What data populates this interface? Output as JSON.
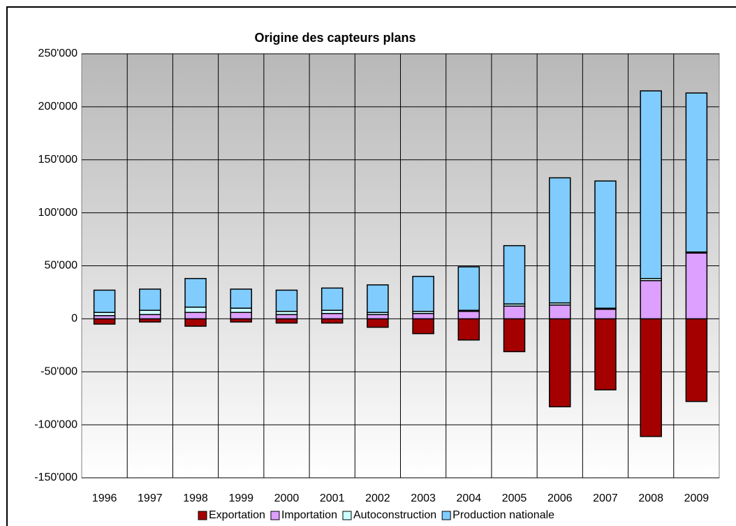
{
  "chart_data": {
    "type": "bar",
    "stacked": true,
    "title": "Origine des capteurs plans",
    "categories": [
      "1996",
      "1997",
      "1998",
      "1999",
      "2000",
      "2001",
      "2002",
      "2003",
      "2004",
      "2005",
      "2006",
      "2007",
      "2008",
      "2009"
    ],
    "series": [
      {
        "name": "Exportation",
        "color": "#a50000",
        "values": [
          -5000,
          -3000,
          -7000,
          -3000,
          -4000,
          -4000,
          -8000,
          -14000,
          -20000,
          -31000,
          -83000,
          -67000,
          -111000,
          -78000
        ]
      },
      {
        "name": "Importation",
        "color": "#dda0ff",
        "values": [
          3000,
          4000,
          6000,
          6000,
          4000,
          5000,
          4000,
          5000,
          7000,
          12000,
          13000,
          9000,
          36000,
          62000
        ]
      },
      {
        "name": "Autoconstruction",
        "color": "#ccffff",
        "values": [
          3000,
          4000,
          5000,
          4000,
          3000,
          3000,
          2000,
          2000,
          1000,
          2000,
          2000,
          1000,
          2000,
          1000
        ]
      },
      {
        "name": "Production nationale",
        "color": "#80ccff",
        "values": [
          21000,
          20000,
          27000,
          18000,
          20000,
          21000,
          26000,
          33000,
          41000,
          55000,
          118000,
          120000,
          177000,
          150000
        ]
      }
    ],
    "ylim": [
      -150000,
      250000
    ],
    "yticks": [
      {
        "value": -150000,
        "label": "-150'000"
      },
      {
        "value": -100000,
        "label": "-100'000"
      },
      {
        "value": -50000,
        "label": "-50'000"
      },
      0,
      {
        "value": 50000,
        "label": "50'000"
      },
      {
        "value": 100000,
        "label": "100'000"
      },
      {
        "value": 150000,
        "label": "150'000"
      },
      {
        "value": 200000,
        "label": "200'000"
      },
      {
        "value": 250000,
        "label": "250'000"
      }
    ],
    "grid": true,
    "legend": "bottom"
  }
}
